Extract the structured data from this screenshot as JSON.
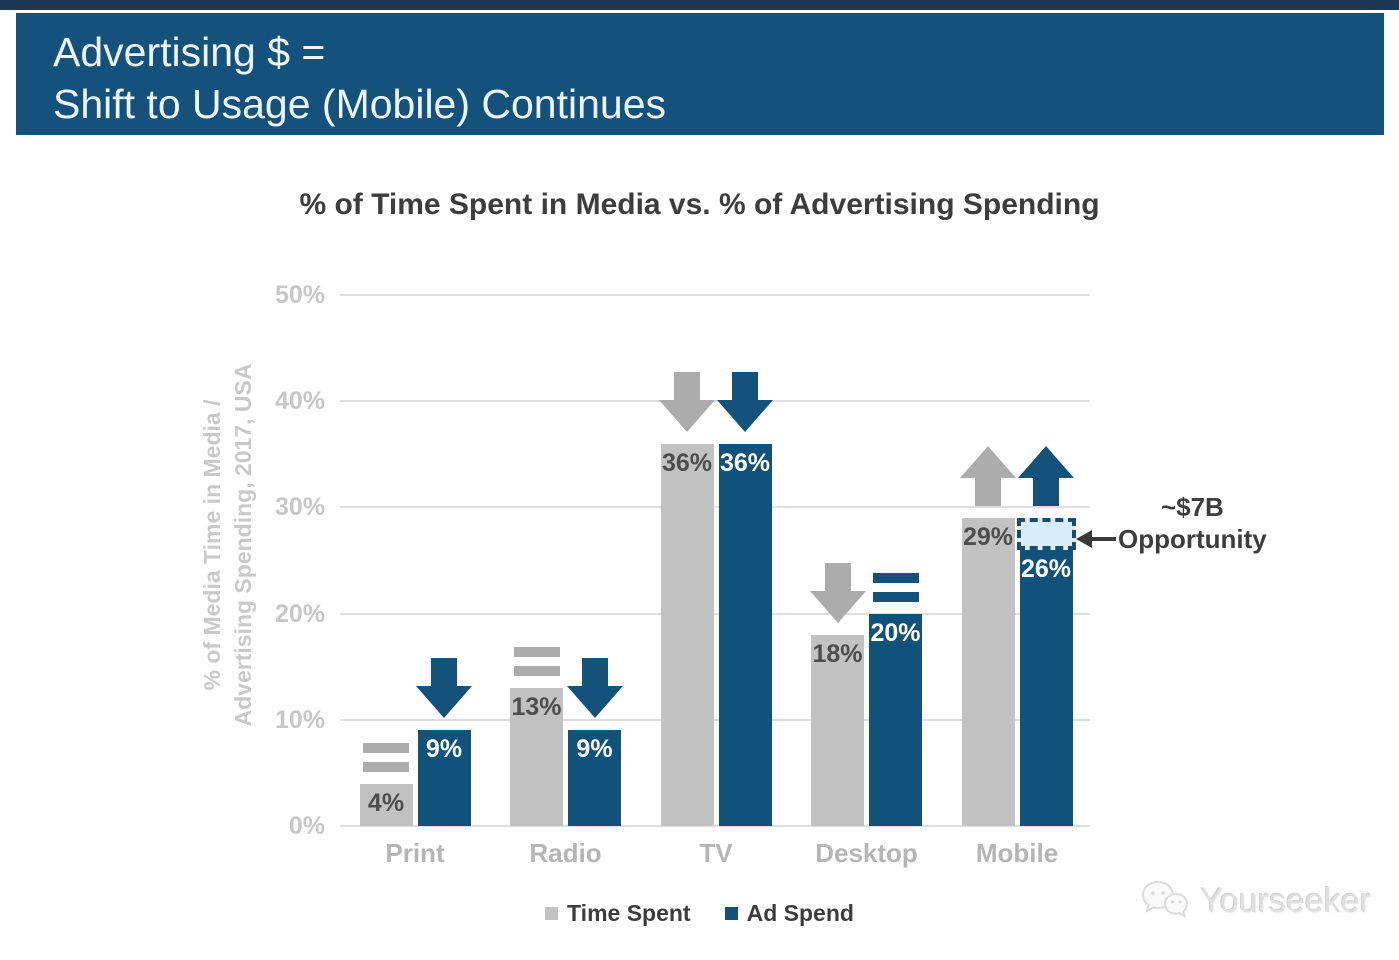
{
  "banner": {
    "line1": "Advertising $ =",
    "line2": "Shift to Usage (Mobile) Continues"
  },
  "chart_data": {
    "type": "bar",
    "title": "% of Time Spent in Media vs. % of Advertising Spending",
    "ylabel_line1": "% of Media Time in Media /",
    "ylabel_line2": "Advertising Spending, 2017, USA",
    "categories": [
      "Print",
      "Radio",
      "TV",
      "Desktop",
      "Mobile"
    ],
    "series": [
      {
        "name": "Time Spent",
        "color": "#c2c2c2",
        "values": [
          4,
          13,
          36,
          18,
          29
        ],
        "labels": [
          "4%",
          "13%",
          "36%",
          "18%",
          "29%"
        ],
        "trend": [
          "equal",
          "equal",
          "down",
          "down",
          "up"
        ]
      },
      {
        "name": "Ad Spend",
        "color": "#11527a",
        "values": [
          9,
          9,
          36,
          20,
          26
        ],
        "labels": [
          "9%",
          "9%",
          "36%",
          "20%",
          "26%"
        ],
        "trend": [
          "down",
          "down",
          "down",
          "equal",
          "up"
        ]
      }
    ],
    "yticks": [
      "0%",
      "10%",
      "20%",
      "30%",
      "40%",
      "50%"
    ],
    "ylim": [
      0,
      50
    ],
    "grid": true,
    "legend_position": "bottom",
    "opportunity": {
      "category": "Mobile",
      "series": "Ad Spend",
      "from": 26,
      "to": 29,
      "label_line1": "~$7B",
      "label_line2": "Opportunity"
    }
  },
  "legend": {
    "items": [
      {
        "label": "Time Spent",
        "color": "#c2c2c2"
      },
      {
        "label": "Ad Spend",
        "color": "#11527a"
      }
    ]
  },
  "watermark": {
    "label": "Yourseeker"
  },
  "colors": {
    "top_strip": "#1a3854",
    "banner_bg": "#14527c",
    "bar_gray": "#c2c2c2",
    "bar_blue": "#11527a",
    "arrow_gray": "#acacac",
    "arrow_blue": "#14527c",
    "grid": "#dedede",
    "axis_text": "#c7c7c7",
    "category_text": "#b5b5b5",
    "dark_text": "#3d3d3d",
    "gray_bar_label_text": "#4d4d4d",
    "blue_bar_label_text": "#ffffff",
    "opportunity_fill": "#d9edf9",
    "opportunity_border": "#1b4c74"
  }
}
